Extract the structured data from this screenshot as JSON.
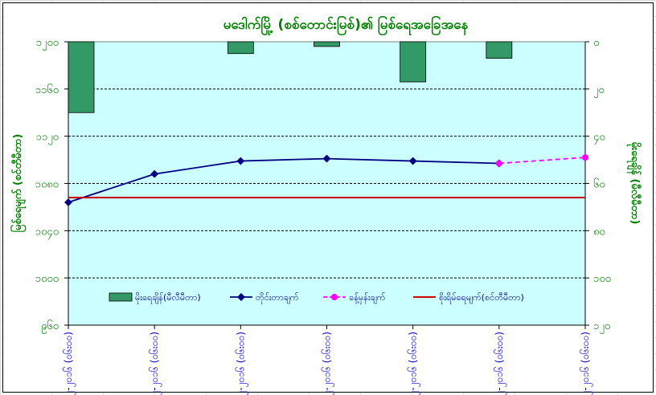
{
  "chart_data": {
    "type": "bar+line",
    "title": "မဒေါက်မြို့ (စစ်တောင်းမြစ်)၏ မြစ်ရေအခြေအနေ",
    "ylabel_left": "မြစ်ရေမျက် (စင်တီမီတာ)",
    "ylabel_right": "မိုးရေချိန် (မီလီမီတာ)",
    "x_categories": [
      "၂၃-၁၂-၂၀၁၆ (၀၆း၀၀)",
      "၂၄-၁၂-၂၀၁၆ (၀၆း၀၀)",
      "၂၅-၁၂-၂၀၁၆ (၀၆း၀၀)",
      "၂၆-၁၂-၂၀၁၆ (၀၆း၀၀)",
      "၂၇-၁၂-၂၀၁၆ (၀၆း၀၀)",
      "၂၈-၁၂-၂၀၁၆ (၀၆း၀၀)",
      "၂၉-၁၂-၂၀၁၆ (၀၆း၀၀)"
    ],
    "left_axis": {
      "min": 960,
      "max": 1200,
      "ticks": [
        "၉၆၀",
        "၁၀၀၀",
        "၁၀၄၀",
        "၁၀၈၀",
        "၁၁၂၀",
        "၁၁၆၀",
        "၁၂၀၀"
      ]
    },
    "right_axis": {
      "min": 0,
      "max": 120,
      "inverted": true,
      "ticks": [
        "၀",
        "၂၀",
        "၄၀",
        "၆၀",
        "၈၀",
        "၁၀၀",
        "၁၂၀"
      ]
    },
    "series": [
      {
        "name": "မိုးရေချိန်(မီလီမီတာ)",
        "type": "bar",
        "axis": "right",
        "color": "#339966",
        "values": [
          30,
          0,
          5,
          2,
          17,
          7,
          null
        ]
      },
      {
        "name": "တိုင်းတာချက်",
        "type": "line",
        "axis": "left",
        "color": "#000080",
        "values": [
          1064,
          1088,
          1099,
          1101,
          1099,
          1097,
          null
        ]
      },
      {
        "name": "ခန့်မှန်းချက်",
        "type": "line-dashed",
        "axis": "left",
        "color": "#ff00ff",
        "values": [
          null,
          null,
          null,
          null,
          null,
          1097,
          1102
        ]
      },
      {
        "name": "စိုးရိမ်ရေမျက်(စင်တီမီတာ)",
        "type": "hline",
        "axis": "left",
        "color": "#cc0000",
        "value": 1068
      }
    ],
    "grid": true,
    "legend_position": "bottom-inside",
    "plot_background": "#ccffff"
  }
}
